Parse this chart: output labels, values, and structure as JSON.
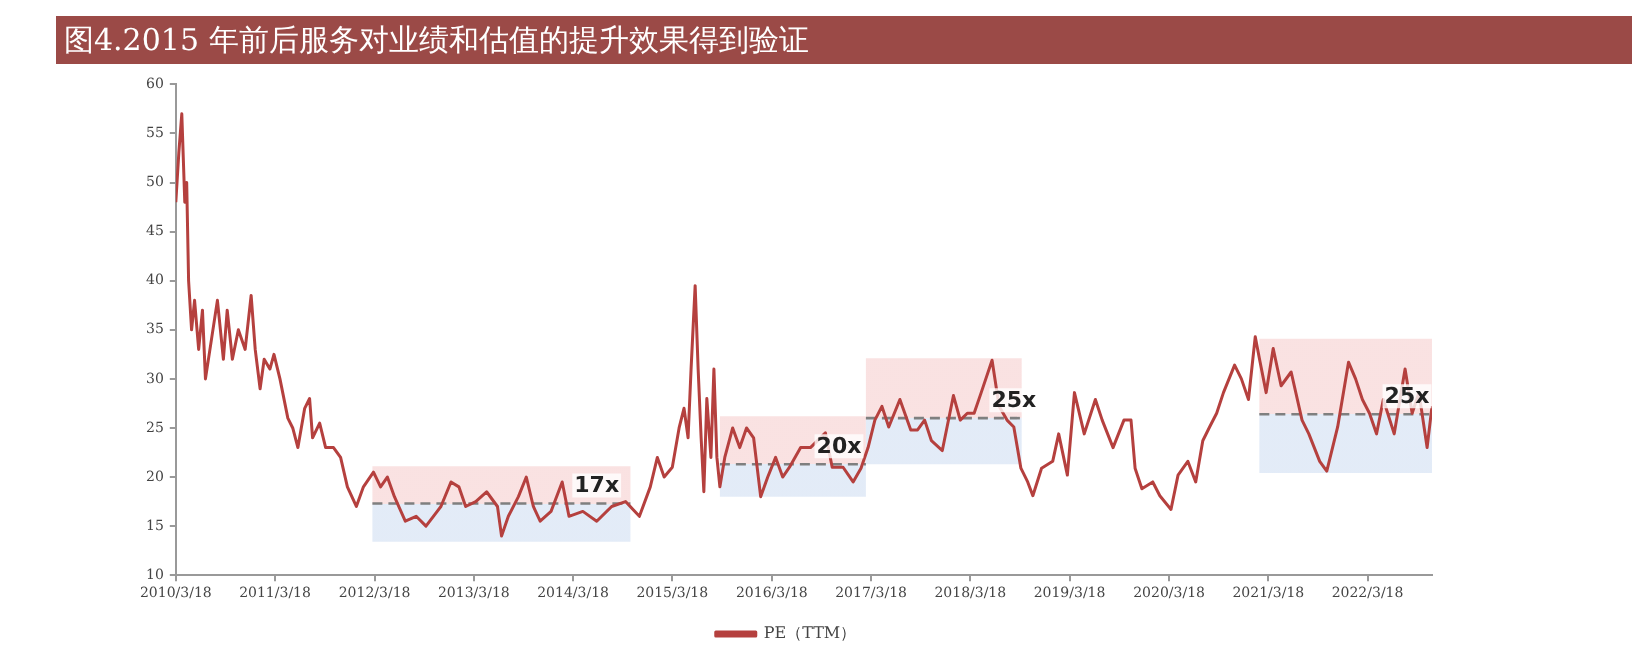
{
  "chart_data": {
    "type": "line",
    "title": "图4.2015 年前后服务对业绩和估值的提升效果得到验证",
    "xlim": [
      "2010-03-18",
      "2022-11-10"
    ],
    "xticks": [
      {
        "value": "2010-03-18",
        "label": "2010/3/18"
      },
      {
        "value": "2011-03-18",
        "label": "2011/3/18"
      },
      {
        "value": "2012-03-18",
        "label": "2012/3/18"
      },
      {
        "value": "2013-03-18",
        "label": "2013/3/18"
      },
      {
        "value": "2014-03-18",
        "label": "2014/3/18"
      },
      {
        "value": "2015-03-18",
        "label": "2015/3/18"
      },
      {
        "value": "2016-03-18",
        "label": "2016/3/18"
      },
      {
        "value": "2017-03-18",
        "label": "2017/3/18"
      },
      {
        "value": "2018-03-18",
        "label": "2018/3/18"
      },
      {
        "value": "2019-03-18",
        "label": "2019/3/18"
      },
      {
        "value": "2020-03-18",
        "label": "2020/3/18"
      },
      {
        "value": "2021-03-18",
        "label": "2021/3/18"
      },
      {
        "value": "2022-03-18",
        "label": "2022/3/18"
      }
    ],
    "ylim": [
      10,
      60
    ],
    "yticks": [
      10,
      15,
      20,
      25,
      30,
      35,
      40,
      45,
      50,
      55,
      60
    ],
    "legend": "bottom",
    "series": [
      {
        "name": "PE（TTM）",
        "color": "#b5403e",
        "line_style": "solid",
        "x": [
          "2010-03-18",
          "2010-03-29",
          "2010-04-09",
          "2010-04-20",
          "2010-04-27",
          "2010-05-04",
          "2010-05-15",
          "2010-05-26",
          "2010-06-10",
          "2010-06-24",
          "2010-07-05",
          "2010-07-27",
          "2010-08-18",
          "2010-09-09",
          "2010-09-23",
          "2010-10-12",
          "2010-11-03",
          "2010-11-28",
          "2010-12-20",
          "2011-01-04",
          "2011-01-22",
          "2011-02-06",
          "2011-02-27",
          "2011-03-14",
          "2011-04-05",
          "2011-05-04",
          "2011-05-22",
          "2011-06-10",
          "2011-07-05",
          "2011-07-23",
          "2011-08-03",
          "2011-08-29",
          "2011-09-20",
          "2011-10-19",
          "2011-11-14",
          "2011-12-09",
          "2012-01-11",
          "2012-02-06",
          "2012-03-14",
          "2012-04-09",
          "2012-05-04",
          "2012-05-30",
          "2012-07-09",
          "2012-08-18",
          "2012-09-23",
          "2012-11-17",
          "2012-12-24",
          "2013-01-22",
          "2013-02-16",
          "2013-03-25",
          "2013-05-04",
          "2013-06-13",
          "2013-06-28",
          "2013-07-23",
          "2013-08-29",
          "2013-09-27",
          "2013-10-23",
          "2013-11-17",
          "2013-12-27",
          "2014-02-06",
          "2014-03-03",
          "2014-04-23",
          "2014-06-13",
          "2014-08-07",
          "2014-09-27",
          "2014-11-17",
          "2014-12-27",
          "2015-01-22",
          "2015-02-16",
          "2015-03-18",
          "2015-04-12",
          "2015-04-30",
          "2015-05-15",
          "2015-05-26",
          "2015-06-10",
          "2015-06-21",
          "2015-07-02",
          "2015-07-12",
          "2015-07-23",
          "2015-08-07",
          "2015-08-18",
          "2015-08-29",
          "2015-09-09",
          "2015-09-27",
          "2015-10-26",
          "2015-11-21",
          "2015-12-16",
          "2016-01-11",
          "2016-02-06",
          "2016-03-03",
          "2016-04-01",
          "2016-04-27",
          "2016-05-22",
          "2016-07-02",
          "2016-08-07",
          "2016-10-01",
          "2016-10-26",
          "2016-12-05",
          "2017-01-11",
          "2017-02-09",
          "2017-03-07",
          "2017-04-01",
          "2017-04-27",
          "2017-05-22",
          "2017-07-02",
          "2017-08-11",
          "2017-09-05",
          "2017-10-01",
          "2017-10-26",
          "2017-12-05",
          "2018-01-15",
          "2018-02-09",
          "2018-03-07",
          "2018-04-01",
          "2018-04-27",
          "2018-06-06",
          "2018-07-02",
          "2018-07-31",
          "2018-08-25",
          "2018-09-20",
          "2018-10-15",
          "2018-11-03",
          "2018-12-05",
          "2019-01-15",
          "2019-02-06",
          "2019-03-10",
          "2019-04-05",
          "2019-05-11",
          "2019-06-21",
          "2019-07-16",
          "2019-08-25",
          "2019-10-04",
          "2019-10-30",
          "2019-11-14",
          "2019-12-09",
          "2020-01-18",
          "2020-02-13",
          "2020-03-25",
          "2020-04-20",
          "2020-05-26",
          "2020-06-24",
          "2020-07-20",
          "2020-08-14",
          "2020-09-09",
          "2020-10-04",
          "2020-11-14",
          "2020-12-09",
          "2021-01-04",
          "2021-01-29",
          "2021-02-13",
          "2021-03-10",
          "2021-04-05",
          "2021-05-04",
          "2021-06-10",
          "2021-07-20",
          "2021-08-14",
          "2021-09-23",
          "2021-10-19",
          "2021-11-28",
          "2022-01-07",
          "2022-02-02",
          "2022-02-27",
          "2022-03-25",
          "2022-04-20",
          "2022-05-15",
          "2022-06-24",
          "2022-08-03",
          "2022-08-29",
          "2022-09-23",
          "2022-10-23",
          "2022-11-10"
        ],
        "values": [
          48,
          53,
          57,
          48,
          50,
          40,
          35,
          38,
          33,
          37,
          30,
          34,
          38,
          32,
          37,
          32,
          35,
          33,
          38.5,
          33,
          29,
          32,
          31,
          32.5,
          30,
          26,
          25,
          23,
          27,
          28,
          24,
          25.5,
          23,
          23,
          22,
          19,
          17,
          19,
          20.5,
          19,
          20,
          18,
          15.5,
          16,
          15,
          17,
          19.5,
          19,
          17,
          17.5,
          18.5,
          17,
          14,
          16,
          18,
          20,
          17,
          15.5,
          16.5,
          19.5,
          16,
          16.5,
          15.5,
          17,
          17.5,
          16,
          19,
          22,
          20,
          21,
          25,
          27,
          24,
          31,
          39.5,
          31,
          24,
          18.5,
          28,
          22,
          31,
          22,
          19,
          22,
          25,
          23,
          25,
          24,
          18,
          20,
          22,
          20,
          21,
          23,
          23,
          24.5,
          21,
          21,
          19.5,
          20.9,
          23,
          25.8,
          27.2,
          25.1,
          27.9,
          24.8,
          24.8,
          25.8,
          23.7,
          22.7,
          28.3,
          25.8,
          26.5,
          26.5,
          28.6,
          31.9,
          27.2,
          25.8,
          25.1,
          20.9,
          19.5,
          18.1,
          20.9,
          21.6,
          24.4,
          20.2,
          28.6,
          24.4,
          27.9,
          25.8,
          23,
          25.8,
          25.8,
          20.9,
          18.8,
          19.5,
          18.1,
          16.7,
          20.2,
          21.6,
          19.5,
          23.7,
          25.1,
          26.5,
          28.6,
          31.4,
          30,
          27.9,
          34.3,
          32.1,
          28.6,
          33.1,
          29.3,
          30.7,
          25.8,
          24.4,
          21.6,
          20.6,
          25.1,
          31.7,
          30,
          27.9,
          26.5,
          24.4,
          27.9,
          24.4,
          31,
          26.5,
          28.6,
          23,
          27.2
        ]
      },
      {
        "color": "#7f7f7f",
        "line_style": "dashed",
        "x": [
          "2012-03-10",
          "2014-10-15"
        ],
        "values": [
          17.3,
          17.3
        ],
        "lower": [
          13.4,
          13.4
        ],
        "upper": [
          21.1,
          21.1
        ]
      },
      {
        "color": "#7f7f7f",
        "line_style": "dashed",
        "x": [
          "2015-09-09",
          "2017-02-27"
        ],
        "values": [
          21.3,
          21.3
        ],
        "lower": [
          18,
          18
        ],
        "upper": [
          26.2,
          26.2
        ]
      },
      {
        "color": "#7f7f7f",
        "line_style": "dashed",
        "x": [
          "2017-02-27",
          "2018-09-23"
        ],
        "values": [
          26,
          26
        ],
        "lower": [
          21.3,
          21.3
        ],
        "upper": [
          32.1,
          32.1
        ]
      },
      {
        "color": "#7f7f7f",
        "line_style": "dashed",
        "x": [
          "2021-02-13",
          "2022-11-10"
        ],
        "values": [
          26.4,
          26.4
        ],
        "lower": [
          20.4,
          20.4
        ],
        "upper": [
          34.1,
          34.1
        ]
      }
    ],
    "annotations": [
      {
        "text": "17x",
        "x": "2014-06-13",
        "y": 17.3
      },
      {
        "text": "20x",
        "x": "2016-11-20",
        "y": 21.3
      },
      {
        "text": "25x",
        "x": "2018-08-25",
        "y": 26
      },
      {
        "text": "25x",
        "x": "2022-08-10",
        "y": 26.4
      }
    ]
  }
}
